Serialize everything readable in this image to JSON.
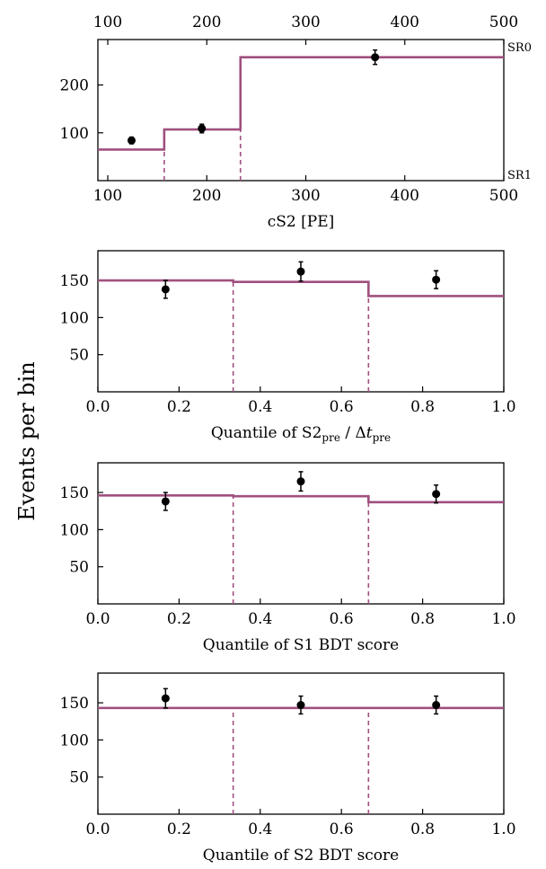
{
  "figure": {
    "ylabel": "Events per bin",
    "colors": {
      "model": "#a0507f",
      "data": "#000000"
    }
  },
  "chart_data": [
    {
      "type": "line",
      "id": "cs2",
      "xlabel": "cS2 [PE]",
      "xlim": [
        90,
        500
      ],
      "ylim": [
        0,
        295
      ],
      "xticks": [
        100,
        200,
        300,
        400,
        500
      ],
      "yticks": [
        100,
        200
      ],
      "top_xticks": [
        100,
        200,
        300,
        400,
        500
      ],
      "top_xlim": [
        90,
        500
      ],
      "right_labels": {
        "top": "SR0",
        "bottom": "SR1"
      },
      "model_steps": {
        "edges": [
          90,
          157,
          234,
          500
        ],
        "values": [
          65,
          107,
          258
        ]
      },
      "dividers": [
        157,
        234
      ],
      "data": [
        {
          "x": 124,
          "y": 84,
          "err": 7
        },
        {
          "x": 195,
          "y": 109,
          "err": 9
        },
        {
          "x": 370,
          "y": 258,
          "err": 15
        }
      ]
    },
    {
      "type": "line",
      "id": "s2pre",
      "xlabel": "Quantile of S2",
      "xlabel_sub1": "pre",
      "xlabel_mid": " / Δ",
      "xlabel_italic": "t",
      "xlabel_sub2": "pre",
      "xlim": [
        0,
        1
      ],
      "ylim": [
        0,
        190
      ],
      "xticks": [
        "0.0",
        "0.2",
        "0.4",
        "0.6",
        "0.8",
        "1.0"
      ],
      "yticks": [
        50,
        100,
        150
      ],
      "model_steps": {
        "edges": [
          0,
          0.3333,
          0.6667,
          1.0
        ],
        "values": [
          150,
          148,
          129
        ]
      },
      "dividers": [
        0.3333,
        0.6667
      ],
      "data": [
        {
          "x": 0.1667,
          "y": 138,
          "err": 12
        },
        {
          "x": 0.5,
          "y": 162,
          "err": 13
        },
        {
          "x": 0.8333,
          "y": 151,
          "err": 12
        }
      ]
    },
    {
      "type": "line",
      "id": "s1bdt",
      "xlabel": "Quantile of S1 BDT score",
      "xlim": [
        0,
        1
      ],
      "ylim": [
        0,
        190
      ],
      "xticks": [
        "0.0",
        "0.2",
        "0.4",
        "0.6",
        "0.8",
        "1.0"
      ],
      "yticks": [
        50,
        100,
        150
      ],
      "model_steps": {
        "edges": [
          0,
          0.3333,
          0.6667,
          1.0
        ],
        "values": [
          146,
          145,
          137
        ]
      },
      "dividers": [
        0.3333,
        0.6667
      ],
      "data": [
        {
          "x": 0.1667,
          "y": 138,
          "err": 12
        },
        {
          "x": 0.5,
          "y": 165,
          "err": 13
        },
        {
          "x": 0.8333,
          "y": 148,
          "err": 12
        }
      ]
    },
    {
      "type": "line",
      "id": "s2bdt",
      "xlabel": "Quantile of S2 BDT score",
      "xlim": [
        0,
        1
      ],
      "ylim": [
        0,
        190
      ],
      "xticks": [
        "0.0",
        "0.2",
        "0.4",
        "0.6",
        "0.8",
        "1.0"
      ],
      "yticks": [
        50,
        100,
        150
      ],
      "model_steps": {
        "edges": [
          0,
          0.3333,
          0.6667,
          1.0
        ],
        "values": [
          143,
          143,
          143
        ]
      },
      "dividers": [
        0.3333,
        0.6667
      ],
      "data": [
        {
          "x": 0.1667,
          "y": 156,
          "err": 13
        },
        {
          "x": 0.5,
          "y": 147,
          "err": 12
        },
        {
          "x": 0.8333,
          "y": 147,
          "err": 12
        }
      ]
    }
  ]
}
